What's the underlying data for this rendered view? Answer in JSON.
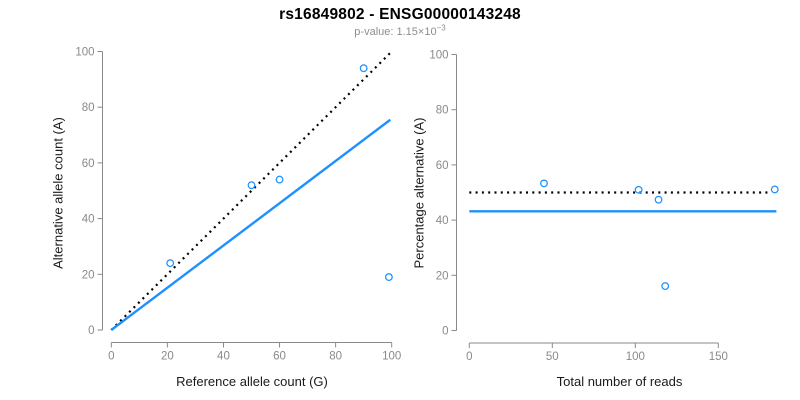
{
  "header": {
    "title": "rs16849802 - ENSG00000143248",
    "subtitle_prefix": "p-value: 1.15×10",
    "subtitle_exponent": "−3"
  },
  "colors": {
    "point_stroke": "#1E90FF",
    "fit_line": "#1E90FF",
    "identity_line": "#000000",
    "axis": "#8a8a8a",
    "tick_text": "#8a8a8a",
    "label_text": "#1a1a1a",
    "subtitle_text": "#8e8e8e",
    "background": "#ffffff"
  },
  "chart_data": [
    {
      "type": "scatter",
      "panel": "allele-counts",
      "xlabel": "Reference allele count (G)",
      "ylabel": "Alternative allele count (A)",
      "xlim": [
        0,
        100
      ],
      "ylim": [
        0,
        100
      ],
      "xticks": [
        0,
        20,
        40,
        60,
        80,
        100
      ],
      "yticks": [
        0,
        20,
        40,
        60,
        80,
        100
      ],
      "grid": false,
      "legend": null,
      "points": [
        {
          "x": 21,
          "y": 24
        },
        {
          "x": 50,
          "y": 52
        },
        {
          "x": 60,
          "y": 54
        },
        {
          "x": 90,
          "y": 94
        },
        {
          "x": 99,
          "y": 19
        }
      ],
      "lines": [
        {
          "name": "identity-line",
          "style": "dotted",
          "color": "#000000",
          "x1": 0,
          "y1": 0,
          "x2": 100,
          "y2": 100
        },
        {
          "name": "fitted-ratio-line",
          "style": "solid",
          "color": "#1E90FF",
          "x1": 0,
          "y1": 0,
          "x2": 99.5,
          "y2": 75.5
        }
      ]
    },
    {
      "type": "scatter",
      "panel": "percentage-vs-total-reads",
      "xlabel": "Total number of reads",
      "ylabel": "Percentage alternative (A)",
      "xlim": [
        0,
        185
      ],
      "ylim": [
        0,
        100
      ],
      "xticks": [
        0,
        50,
        100,
        150
      ],
      "yticks": [
        0,
        20,
        40,
        60,
        80,
        100
      ],
      "grid": false,
      "legend": null,
      "points": [
        {
          "x": 45,
          "y": 53.3
        },
        {
          "x": 102,
          "y": 51.0
        },
        {
          "x": 114,
          "y": 47.4
        },
        {
          "x": 118,
          "y": 16.1
        },
        {
          "x": 184,
          "y": 51.1
        }
      ],
      "lines": [
        {
          "name": "expected-50pct-line",
          "style": "dotted",
          "color": "#000000",
          "x1": 0,
          "y1": 50,
          "x2": 180,
          "y2": 50
        },
        {
          "name": "mean-percentage-line",
          "style": "solid",
          "color": "#1E90FF",
          "x1": 0,
          "y1": 43.2,
          "x2": 185,
          "y2": 43.2
        }
      ]
    }
  ]
}
